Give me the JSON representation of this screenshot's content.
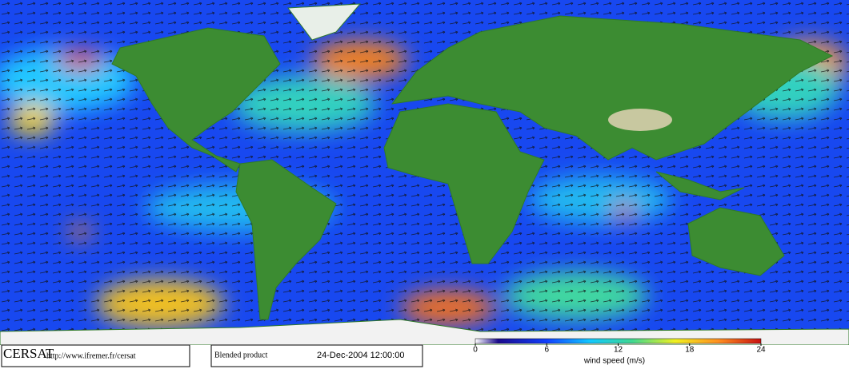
{
  "footer": {
    "logo": "CERSAT",
    "url": "http://www.ifremer.fr/cersat",
    "product": "Blended product",
    "date": "24-Dec-2004 12:00:00"
  },
  "colorbar": {
    "lim": [
      0,
      24
    ],
    "ticks": [
      0,
      6,
      12,
      18,
      24
    ],
    "label": "wind speed (m/s)"
  }
}
